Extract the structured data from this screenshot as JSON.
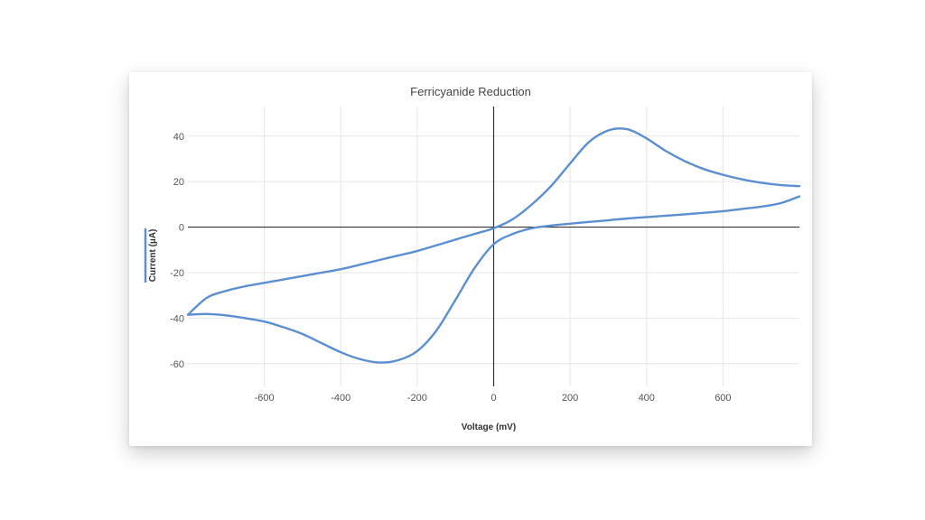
{
  "chart_data": {
    "type": "line",
    "title": "Ferricyanide Reduction",
    "xlabel": "Voltage (mV)",
    "ylabel": "Current (µA)",
    "xlim": [
      -800,
      800
    ],
    "ylim": [
      -70,
      53
    ],
    "x_ticks": [
      -600,
      -400,
      -200,
      0,
      200,
      400,
      600
    ],
    "y_ticks": [
      40,
      20,
      0,
      -20,
      -40,
      -60
    ],
    "grid": true,
    "legend": "none",
    "color": "#5b8fd1",
    "series": [
      {
        "x": [
          -800,
          -750,
          -700,
          -650,
          -600,
          -550,
          -500,
          -450,
          -400,
          -350,
          -300,
          -250,
          -200,
          -150,
          -100,
          -50,
          0,
          50,
          100,
          150,
          200,
          250,
          300,
          350,
          400,
          450,
          500,
          550,
          600,
          650,
          700,
          750,
          800
        ],
        "y": [
          -38.5,
          -31,
          -28,
          -26,
          -24.5,
          -23,
          -21.5,
          -20,
          -18.5,
          -16.5,
          -14.5,
          -12.5,
          -10.5,
          -8,
          -5.5,
          -3,
          -0.5,
          3.5,
          10,
          18,
          28,
          37.5,
          42.5,
          43,
          39,
          33.5,
          29,
          25.5,
          23,
          21,
          19.5,
          18.5,
          18
        ]
      },
      {
        "x": [
          800,
          750,
          700,
          650,
          600,
          550,
          500,
          450,
          400,
          350,
          300,
          250,
          200,
          150,
          100,
          50,
          0,
          -50,
          -100,
          -150,
          -200,
          -250,
          -300,
          -350,
          -400,
          -450,
          -500,
          -550,
          -600,
          -650,
          -700,
          -750,
          -800
        ],
        "y": [
          13.5,
          10.5,
          9,
          8,
          7,
          6.3,
          5.6,
          5,
          4.4,
          3.8,
          3,
          2.3,
          1.5,
          0.7,
          -0.5,
          -3,
          -7.5,
          -18,
          -32,
          -45.5,
          -54.5,
          -58.5,
          -59.5,
          -58,
          -55,
          -51,
          -47,
          -44,
          -41.5,
          -40,
          -38.8,
          -38.2,
          -38.5
        ]
      }
    ]
  }
}
